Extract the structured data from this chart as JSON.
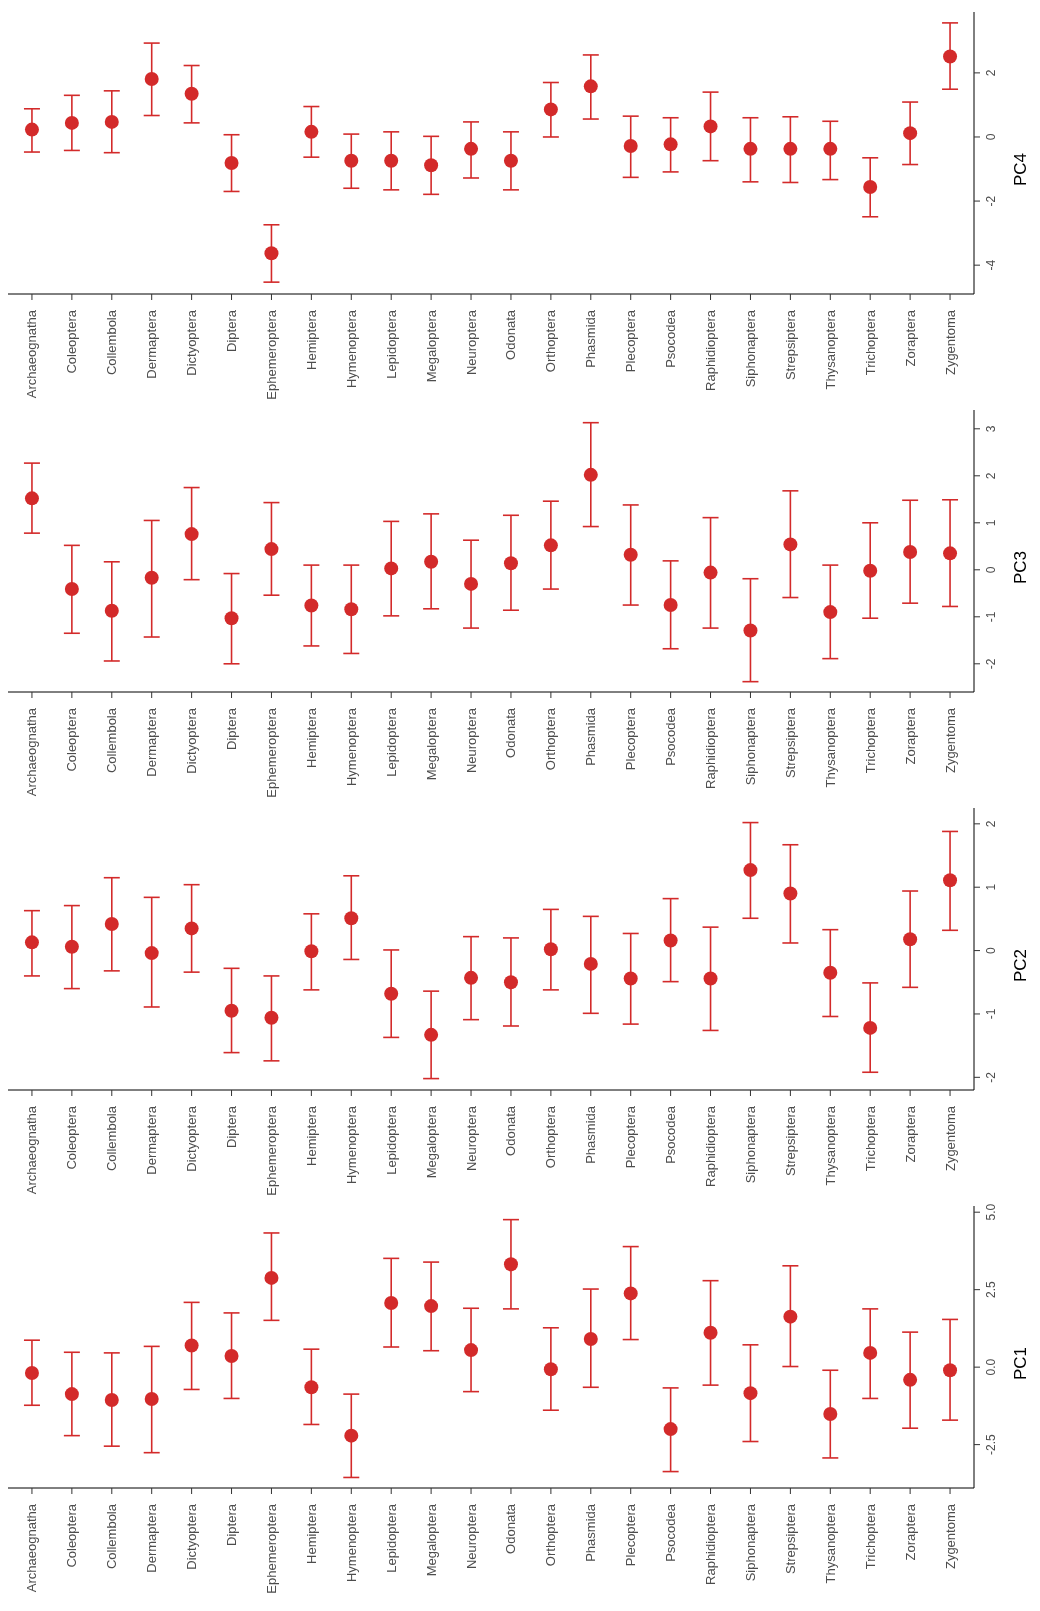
{
  "chart_data": [
    {
      "type": "scatter",
      "ylabel": "PC4",
      "marker": "circle",
      "categories": [
        "Archaeognatha",
        "Coleoptera",
        "Collembola",
        "Dermaptera",
        "Dictyoptera",
        "Diptera",
        "Ephemeroptera",
        "Hemiptera",
        "Hymenoptera",
        "Lepidoptera",
        "Megaloptera",
        "Neuroptera",
        "Odonata",
        "Orthoptera",
        "Phasmida",
        "Plecoptera",
        "Psocodea",
        "Raphidioptera",
        "Siphonaptera",
        "Strepsiptera",
        "Thysanoptera",
        "Trichoptera",
        "Zoraptera",
        "Zygentoma"
      ],
      "series": [
        {
          "color": "#d32a2a",
          "values": [
            0.23,
            0.44,
            0.47,
            1.81,
            1.35,
            -0.81,
            -3.63,
            0.16,
            -0.74,
            -0.74,
            -0.88,
            -0.37,
            -0.74,
            0.86,
            1.58,
            -0.28,
            -0.23,
            0.33,
            -0.37,
            -0.37,
            -0.37,
            -1.56,
            0.12,
            2.51
          ],
          "errors": [
            [
              -0.47,
              0.88
            ],
            [
              -0.42,
              1.3
            ],
            [
              -0.49,
              1.44
            ],
            [
              0.67,
              2.93
            ],
            [
              0.44,
              2.23
            ],
            [
              -1.7,
              0.07
            ],
            [
              -4.53,
              -2.74
            ],
            [
              -0.63,
              0.95
            ],
            [
              -1.6,
              0.09
            ],
            [
              -1.65,
              0.16
            ],
            [
              -1.79,
              0.02
            ],
            [
              -1.28,
              0.47
            ],
            [
              -1.65,
              0.16
            ],
            [
              0,
              1.7
            ],
            [
              0.56,
              2.56
            ],
            [
              -1.26,
              0.65
            ],
            [
              -1.09,
              0.6
            ],
            [
              -0.74,
              1.4
            ],
            [
              -1.4,
              0.6
            ],
            [
              -1.42,
              0.63
            ],
            [
              -1.33,
              0.49
            ],
            [
              -2.49,
              -0.65
            ],
            [
              -0.86,
              1.09
            ],
            [
              1.49,
              3.56
            ]
          ]
        }
      ],
      "ylim": [
        -4.9,
        3.9
      ],
      "yticks": [
        -4,
        -2,
        0,
        2
      ]
    },
    {
      "type": "scatter",
      "ylabel": "PC3",
      "marker": "circle",
      "categories": [
        "Archaeognatha",
        "Coleoptera",
        "Collembola",
        "Dermaptera",
        "Dictyoptera",
        "Diptera",
        "Ephemeroptera",
        "Hemiptera",
        "Hymenoptera",
        "Lepidoptera",
        "Megaloptera",
        "Neuroptera",
        "Odonata",
        "Orthoptera",
        "Phasmida",
        "Plecoptera",
        "Psocodea",
        "Raphidioptera",
        "Siphonaptera",
        "Strepsiptera",
        "Thysanoptera",
        "Trichoptera",
        "Zoraptera",
        "Zygentoma"
      ],
      "series": [
        {
          "color": "#d32a2a",
          "values": [
            1.52,
            -0.41,
            -0.87,
            -0.17,
            0.76,
            -1.03,
            0.44,
            -0.76,
            -0.84,
            0.03,
            0.17,
            -0.3,
            0.14,
            0.52,
            2.02,
            0.32,
            -0.75,
            -0.06,
            -1.29,
            0.54,
            -0.9,
            -0.02,
            0.38,
            0.35
          ],
          "errors": [
            [
              0.78,
              2.27
            ],
            [
              -1.35,
              0.52
            ],
            [
              -1.94,
              0.17
            ],
            [
              -1.43,
              1.05
            ],
            [
              -0.21,
              1.75
            ],
            [
              -2.0,
              -0.08
            ],
            [
              -0.54,
              1.43
            ],
            [
              -1.62,
              0.1
            ],
            [
              -1.78,
              0.1
            ],
            [
              -0.98,
              1.03
            ],
            [
              -0.83,
              1.19
            ],
            [
              -1.24,
              0.63
            ],
            [
              -0.86,
              1.16
            ],
            [
              -0.41,
              1.46
            ],
            [
              0.92,
              3.13
            ],
            [
              -0.75,
              1.38
            ],
            [
              -1.68,
              0.19
            ],
            [
              -1.24,
              1.11
            ],
            [
              -2.38,
              -0.19
            ],
            [
              -0.59,
              1.68
            ],
            [
              -1.89,
              0.1
            ],
            [
              -1.03,
              1.0
            ],
            [
              -0.71,
              1.48
            ],
            [
              -0.78,
              1.49
            ]
          ]
        }
      ],
      "ylim": [
        -2.6,
        3.4
      ],
      "yticks": [
        -2,
        -1,
        0,
        1,
        2,
        3
      ]
    },
    {
      "type": "scatter",
      "ylabel": "PC2",
      "marker": "circle",
      "categories": [
        "Archaeognatha",
        "Coleoptera",
        "Collembola",
        "Dermaptera",
        "Dictyoptera",
        "Diptera",
        "Ephemeroptera",
        "Hemiptera",
        "Hymenoptera",
        "Lepidoptera",
        "Megaloptera",
        "Neuroptera",
        "Odonata",
        "Orthoptera",
        "Phasmida",
        "Plecoptera",
        "Psocodea",
        "Raphidioptera",
        "Siphonaptera",
        "Strepsiptera",
        "Thysanoptera",
        "Trichoptera",
        "Zoraptera",
        "Zygentoma"
      ],
      "series": [
        {
          "color": "#d32a2a",
          "values": [
            0.13,
            0.06,
            0.42,
            -0.04,
            0.35,
            -0.95,
            -1.06,
            -0.01,
            0.51,
            -0.68,
            -1.33,
            -0.43,
            -0.5,
            0.02,
            -0.21,
            -0.44,
            0.16,
            -0.44,
            1.27,
            0.9,
            -0.35,
            -1.22,
            0.18,
            1.11
          ],
          "errors": [
            [
              -0.4,
              0.63
            ],
            [
              -0.6,
              0.71
            ],
            [
              -0.32,
              1.15
            ],
            [
              -0.89,
              0.84
            ],
            [
              -0.34,
              1.04
            ],
            [
              -1.61,
              -0.28
            ],
            [
              -1.74,
              -0.4
            ],
            [
              -0.62,
              0.58
            ],
            [
              -0.14,
              1.18
            ],
            [
              -1.37,
              0.01
            ],
            [
              -2.02,
              -0.64
            ],
            [
              -1.09,
              0.22
            ],
            [
              -1.19,
              0.2
            ],
            [
              -0.62,
              0.65
            ],
            [
              -0.99,
              0.54
            ],
            [
              -1.16,
              0.27
            ],
            [
              -0.49,
              0.82
            ],
            [
              -1.26,
              0.37
            ],
            [
              0.51,
              2.02
            ],
            [
              0.12,
              1.67
            ],
            [
              -1.04,
              0.33
            ],
            [
              -1.92,
              -0.51
            ],
            [
              -0.58,
              0.94
            ],
            [
              0.32,
              1.88
            ]
          ]
        }
      ],
      "ylim": [
        -2.2,
        2.25
      ],
      "yticks": [
        -2,
        -1,
        0,
        1,
        2
      ]
    },
    {
      "type": "scatter",
      "ylabel": "PC1",
      "marker": "circle",
      "categories": [
        "Archaeognatha",
        "Coleoptera",
        "Collembola",
        "Dermaptera",
        "Dictyoptera",
        "Diptera",
        "Ephemeroptera",
        "Hemiptera",
        "Hymenoptera",
        "Lepidoptera",
        "Megaloptera",
        "Neuroptera",
        "Odonata",
        "Orthoptera",
        "Phasmida",
        "Plecoptera",
        "Psocodea",
        "Raphidioptera",
        "Siphonaptera",
        "Strepsiptera",
        "Thysanoptera",
        "Trichoptera",
        "Zoraptera",
        "Zygentoma"
      ],
      "series": [
        {
          "color": "#d32a2a",
          "values": [
            -0.19,
            -0.87,
            -1.06,
            -1.03,
            0.7,
            0.36,
            2.88,
            -0.65,
            -2.21,
            2.07,
            1.97,
            0.55,
            3.32,
            -0.07,
            0.91,
            2.38,
            -2.0,
            1.11,
            -0.84,
            1.63,
            -1.51,
            0.46,
            -0.41,
            -0.1
          ],
          "errors": [
            [
              -1.23,
              0.87
            ],
            [
              -2.21,
              0.48
            ],
            [
              -2.55,
              0.46
            ],
            [
              -2.76,
              0.67
            ],
            [
              -0.72,
              2.09
            ],
            [
              -1.01,
              1.75
            ],
            [
              1.51,
              4.33
            ],
            [
              -1.85,
              0.58
            ],
            [
              -3.56,
              -0.87
            ],
            [
              0.65,
              3.51
            ],
            [
              0.53,
              3.39
            ],
            [
              -0.79,
              1.9
            ],
            [
              1.88,
              4.76
            ],
            [
              -1.39,
              1.27
            ],
            [
              -0.65,
              2.52
            ],
            [
              0.89,
              3.89
            ],
            [
              -3.37,
              -0.67
            ],
            [
              -0.58,
              2.79
            ],
            [
              -2.4,
              0.72
            ],
            [
              0.02,
              3.27
            ],
            [
              -2.93,
              -0.1
            ],
            [
              -1.01,
              1.88
            ],
            [
              -1.97,
              1.13
            ],
            [
              -1.71,
              1.54
            ]
          ]
        }
      ],
      "ylim": [
        -3.9,
        5.2
      ],
      "yticks": [
        {
          "value": -2.5,
          "label": "-2.5"
        },
        {
          "value": 0,
          "label": "0.0"
        },
        {
          "value": 2.5,
          "label": "2.5"
        },
        {
          "value": 5,
          "label": "5.0"
        }
      ]
    }
  ]
}
